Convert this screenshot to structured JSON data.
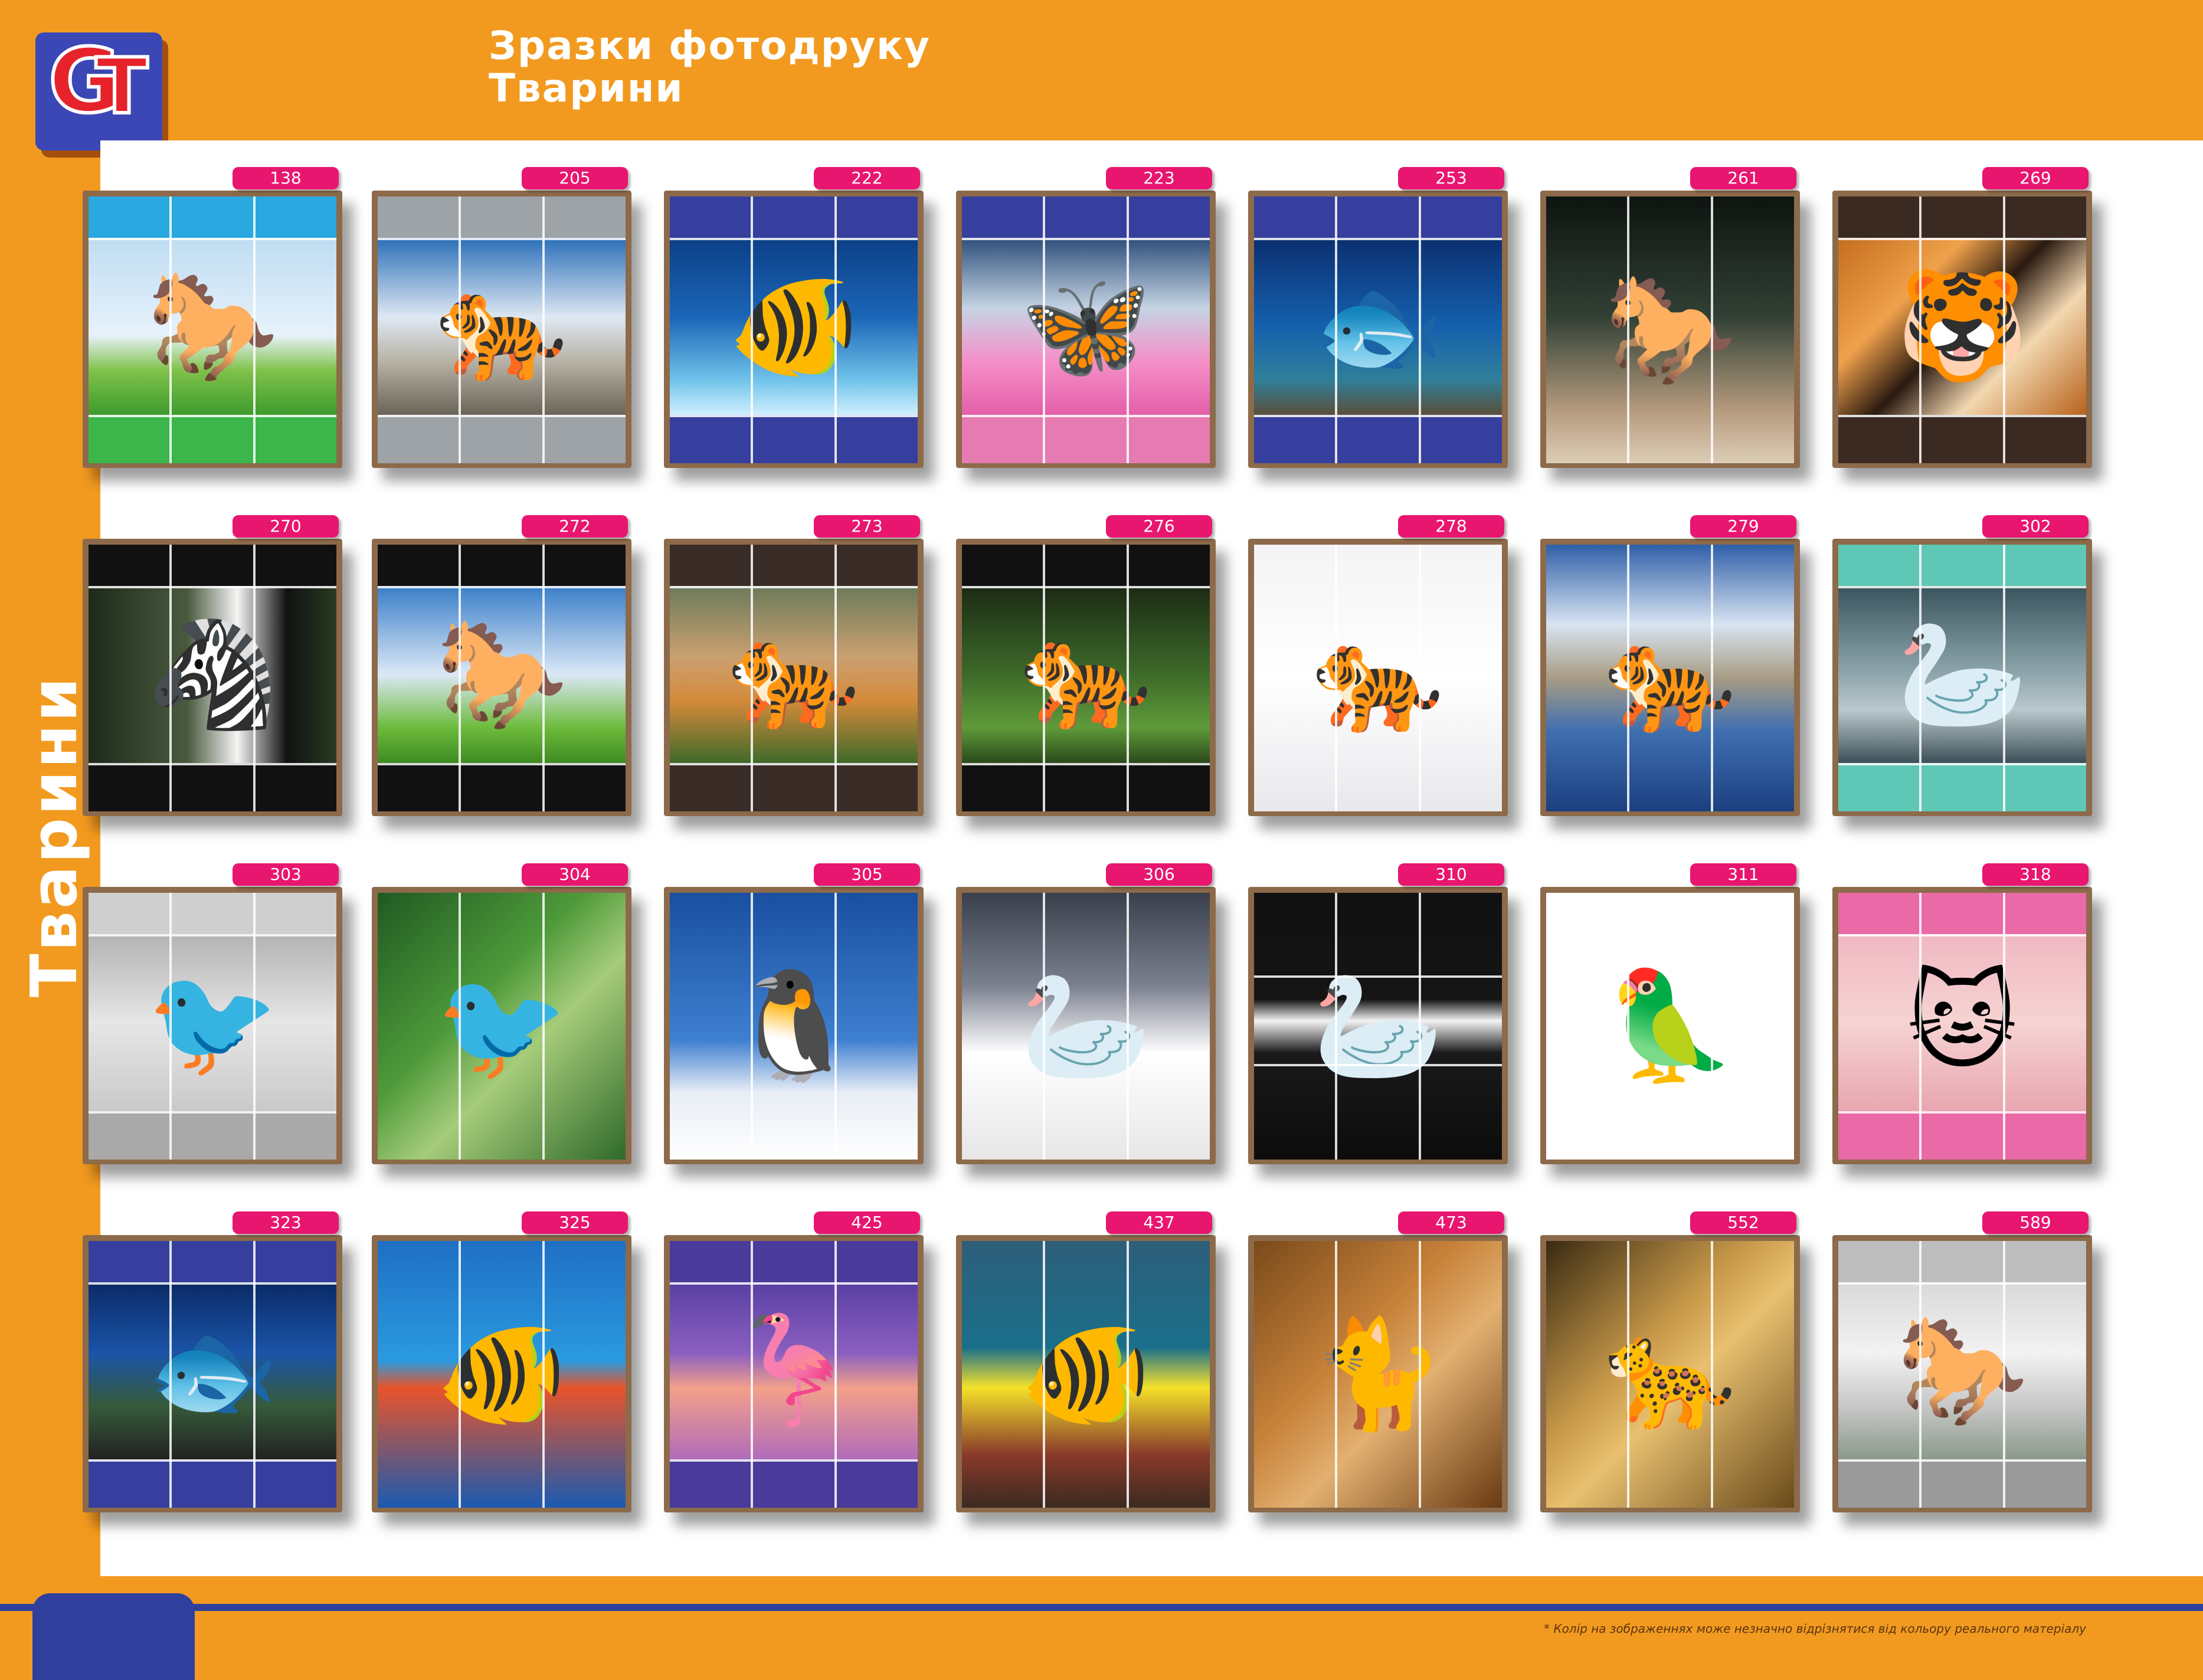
{
  "header": {
    "title_line1": "Зразки фотодруку",
    "title_line2": "Тварини",
    "logo_text": "GT"
  },
  "side_title": "Тварини",
  "footer_note": "* Колір на зображеннях може незначно відрізнятися від кольору реального матеріалу",
  "colors": {
    "accent_orange": "#f29a1f",
    "navy": "#2f3f9e",
    "tag_pink": "#e8166f",
    "frame_brown": "#8c6a4a"
  },
  "samples": [
    {
      "code": "138",
      "subject": "horse",
      "icon": "horse-icon"
    },
    {
      "code": "205",
      "subject": "tiger",
      "icon": "tiger-icon"
    },
    {
      "code": "222",
      "subject": "fish",
      "icon": "fish-icon"
    },
    {
      "code": "223",
      "subject": "butterfly",
      "icon": "butterfly-icon"
    },
    {
      "code": "253",
      "subject": "fish",
      "icon": "fish-icon"
    },
    {
      "code": "261",
      "subject": "horse",
      "icon": "horse-icon"
    },
    {
      "code": "269",
      "subject": "tiger",
      "icon": "tiger-icon"
    },
    {
      "code": "270",
      "subject": "zebra",
      "icon": "zebra-icon"
    },
    {
      "code": "272",
      "subject": "horse",
      "icon": "horse-icon"
    },
    {
      "code": "273",
      "subject": "tiger",
      "icon": "tiger-icon"
    },
    {
      "code": "276",
      "subject": "tiger",
      "icon": "tiger-icon"
    },
    {
      "code": "278",
      "subject": "tiger",
      "icon": "tiger-icon"
    },
    {
      "code": "279",
      "subject": "tiger",
      "icon": "tiger-icon"
    },
    {
      "code": "302",
      "subject": "swan",
      "icon": "swan-icon"
    },
    {
      "code": "303",
      "subject": "bird",
      "icon": "bird-icon"
    },
    {
      "code": "304",
      "subject": "hummingbird",
      "icon": "bird-icon"
    },
    {
      "code": "305",
      "subject": "penguin",
      "icon": "penguin-icon"
    },
    {
      "code": "306",
      "subject": "swan",
      "icon": "swan-icon"
    },
    {
      "code": "310",
      "subject": "swan",
      "icon": "swan-icon"
    },
    {
      "code": "311",
      "subject": "parrot",
      "icon": "parrot-icon"
    },
    {
      "code": "318",
      "subject": "cat",
      "icon": "cat-icon"
    },
    {
      "code": "323",
      "subject": "fish",
      "icon": "fish-icon"
    },
    {
      "code": "325",
      "subject": "fish",
      "icon": "fish-icon"
    },
    {
      "code": "425",
      "subject": "flamingo",
      "icon": "flamingo-icon"
    },
    {
      "code": "437",
      "subject": "fish",
      "icon": "fish-icon"
    },
    {
      "code": "473",
      "subject": "cat",
      "icon": "cat-icon"
    },
    {
      "code": "552",
      "subject": "leopard",
      "icon": "leopard-icon"
    },
    {
      "code": "589",
      "subject": "horse",
      "icon": "horse-icon"
    }
  ]
}
